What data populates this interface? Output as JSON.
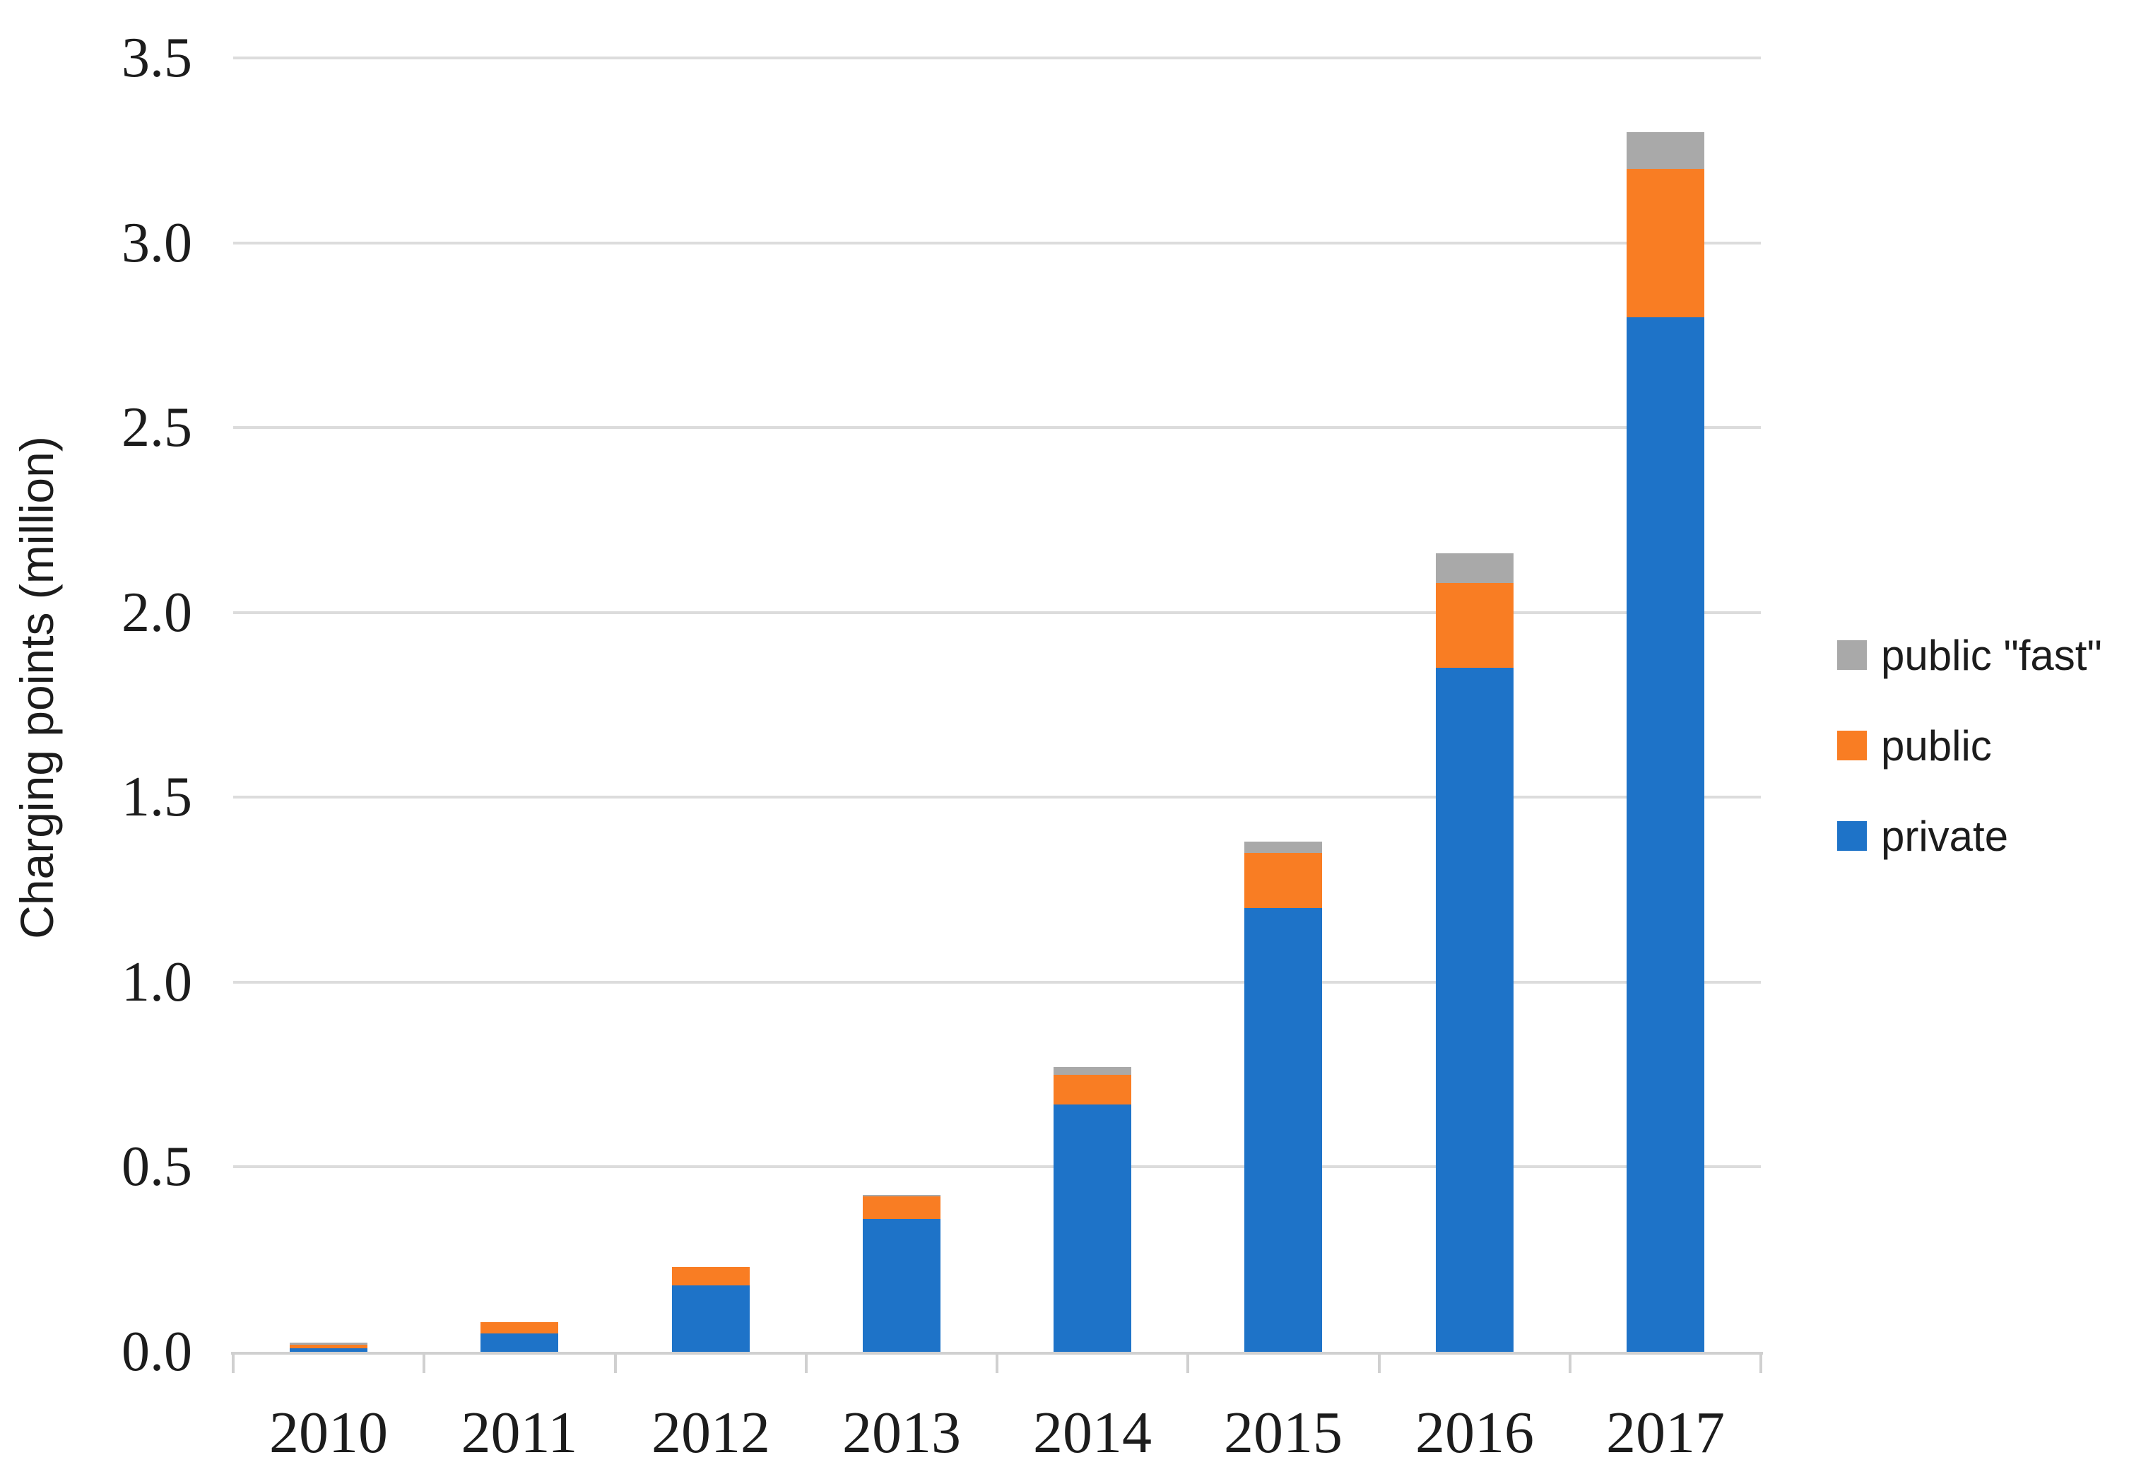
{
  "chart_data": {
    "type": "bar",
    "stacked": true,
    "title": "",
    "xlabel": "",
    "ylabel": "Charging points (million)",
    "categories": [
      "2010",
      "2011",
      "2012",
      "2013",
      "2014",
      "2015",
      "2016",
      "2017"
    ],
    "series": [
      {
        "name": "private",
        "color": "#1e73c8",
        "values": [
          0.01,
          0.05,
          0.18,
          0.36,
          0.67,
          1.2,
          1.85,
          2.8
        ]
      },
      {
        "name": "public",
        "color": "#f97d23",
        "values": [
          0.01,
          0.03,
          0.05,
          0.06,
          0.08,
          0.15,
          0.23,
          0.4
        ]
      },
      {
        "name": "public \"fast\"",
        "color": "#a9a9a9",
        "values": [
          0.005,
          0.0,
          0.0,
          0.005,
          0.02,
          0.03,
          0.08,
          0.1
        ]
      }
    ],
    "totals": [
      0.025,
      0.08,
      0.23,
      0.425,
      0.77,
      1.38,
      2.16,
      3.3
    ],
    "y_ticks": [
      "3.5",
      "3.0",
      "2.5",
      "2.0",
      "1.5",
      "1.0",
      "0.5",
      "0.0"
    ],
    "ylim": [
      0,
      3.5
    ],
    "y_tick_step": 0.5,
    "grid": true,
    "legend_position": "right",
    "legend_order_top_to_bottom": [
      "public \"fast\"",
      "public",
      "private"
    ],
    "grid_color": "#dcdcdc",
    "axis_color": "#d0d0d0",
    "text_color": "#1c1c1c"
  }
}
